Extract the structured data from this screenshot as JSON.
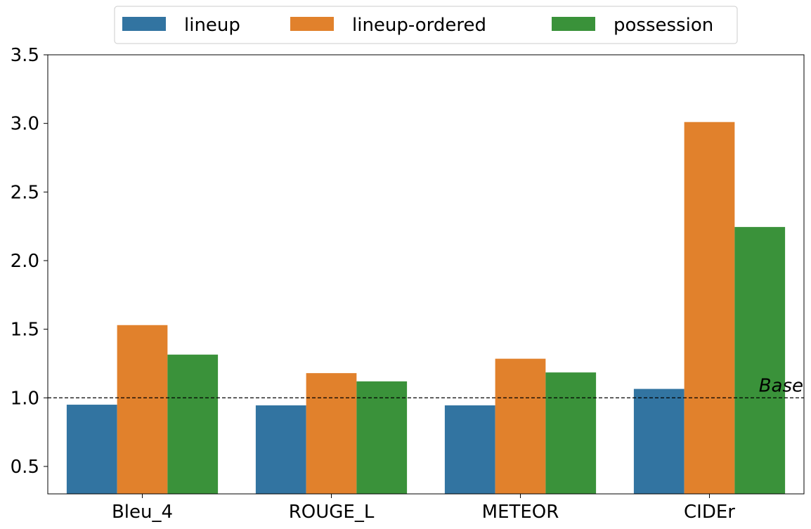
{
  "chart_data": {
    "type": "bar",
    "categories": [
      "Bleu_4",
      "ROUGE_L",
      "METEOR",
      "CIDEr"
    ],
    "series": [
      {
        "name": "lineup",
        "color": "#3274a1",
        "values": [
          0.95,
          0.945,
          0.945,
          1.065
        ]
      },
      {
        "name": "lineup-ordered",
        "color": "#e1812c",
        "values": [
          1.53,
          1.18,
          1.285,
          3.01
        ]
      },
      {
        "name": "possession",
        "color": "#3a923a",
        "values": [
          1.315,
          1.12,
          1.185,
          2.245
        ]
      }
    ],
    "ylim": [
      0.3,
      3.5
    ],
    "yticks": [
      "0.5",
      "1.0",
      "1.5",
      "2.0",
      "2.5",
      "3.0",
      "3.5"
    ],
    "legend_position": "top-center",
    "reference_line": {
      "value": 1.0,
      "style": "dashed",
      "label": "Base"
    },
    "grid": false
  }
}
